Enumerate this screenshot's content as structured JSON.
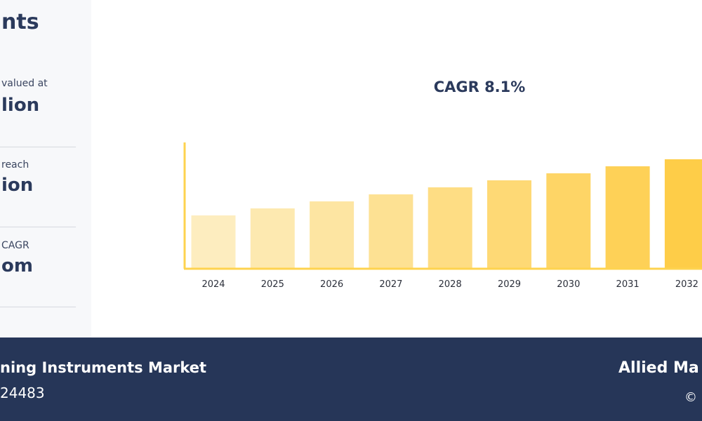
{
  "left_panel": {
    "title": "nts",
    "stats": [
      {
        "label": "valued at",
        "value": "lion"
      },
      {
        "label": "reach",
        "value": "ion"
      },
      {
        "label": "CAGR",
        "value": "om"
      }
    ]
  },
  "chart_data": {
    "type": "bar",
    "annotation": "CAGR 8.1%",
    "categories": [
      "2024",
      "2025",
      "2026",
      "2027",
      "2028",
      "2029",
      "2030",
      "2031",
      "2032"
    ],
    "values": [
      38,
      43,
      48,
      53,
      58,
      63,
      68,
      73,
      78
    ],
    "ylim": [
      0,
      90
    ],
    "grid": false,
    "colors": [
      "#fdedbf",
      "#fde9b0",
      "#fde5a2",
      "#fde193",
      "#fedd84",
      "#fed975",
      "#fed566",
      "#fed157",
      "#fecd48"
    ]
  },
  "footer": {
    "title": "ning Instruments Market",
    "code": "24483",
    "brand": "Allied Ma",
    "copyright": "©"
  }
}
